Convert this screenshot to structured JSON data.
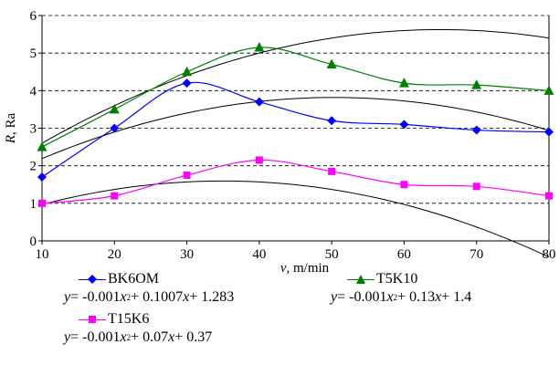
{
  "chart_data": {
    "type": "line",
    "x": [
      10,
      20,
      30,
      40,
      50,
      60,
      70,
      80
    ],
    "xlabel_var": "v",
    "xlabel_unit": ", m/min",
    "ylabel_var": "R",
    "ylabel_unit": ", Ra",
    "xlim": [
      10,
      80
    ],
    "ylim": [
      0,
      6
    ],
    "xticks": [
      10,
      20,
      30,
      40,
      50,
      60,
      70,
      80
    ],
    "yticks": [
      0,
      1,
      2,
      3,
      4,
      5,
      6
    ],
    "grid": "horizontal-dashed",
    "legend_position": "bottom",
    "series": [
      {
        "name": "BK6OM",
        "marker": "diamond",
        "color": "#0000ff",
        "values": [
          1.7,
          3.0,
          4.2,
          3.7,
          3.2,
          3.1,
          2.95,
          2.9
        ],
        "trend": {
          "a": -0.001,
          "b": 0.1007,
          "c": 1.283
        }
      },
      {
        "name": "T5K10",
        "marker": "triangle",
        "color": "#008000",
        "values": [
          2.5,
          3.5,
          4.5,
          5.15,
          4.7,
          4.2,
          4.15,
          4.0
        ],
        "trend": {
          "a": -0.001,
          "b": 0.13,
          "c": 1.4
        }
      },
      {
        "name": "T15K6",
        "marker": "square",
        "color": "#ff00ff",
        "values": [
          1.0,
          1.2,
          1.75,
          2.15,
          1.85,
          1.5,
          1.45,
          1.2
        ],
        "trend": {
          "a": -0.001,
          "b": 0.07,
          "c": 0.37
        }
      }
    ]
  },
  "legend": {
    "bk6om": {
      "name": "BK6OM",
      "eq_y": "y",
      "eq_mid": " = -0.001",
      "eq_x2": "x",
      "eq_sup": "2",
      "eq_rest1": " + 0.1007",
      "eq_x": "x",
      "eq_rest2": " + 1.283"
    },
    "t5k10": {
      "name": "T5K10",
      "eq_y": "y",
      "eq_mid": " = -0.001",
      "eq_x2": "x",
      "eq_sup": "2",
      "eq_rest1": " + 0.13",
      "eq_x": "x",
      "eq_rest2": " + 1.4"
    },
    "t15k6": {
      "name": "T15K6",
      "eq_y": "y",
      "eq_mid": " = -0.001",
      "eq_x2": "x",
      "eq_sup": "2",
      "eq_rest1": " + 0.07",
      "eq_x": "x",
      "eq_rest2": " + 0.37"
    }
  }
}
